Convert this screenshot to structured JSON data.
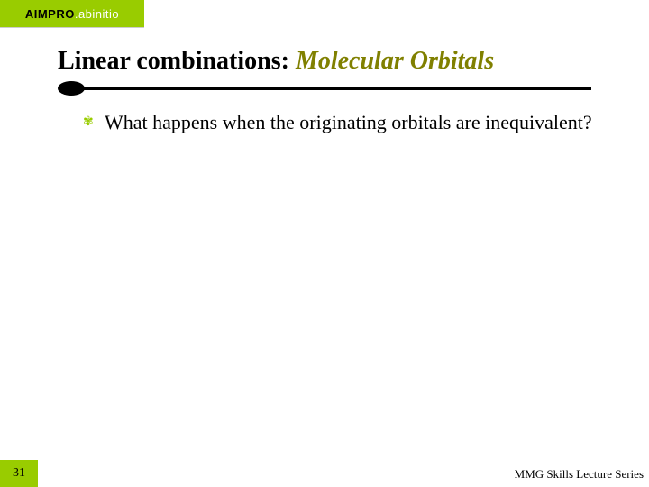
{
  "logo": {
    "part1": "AIMPRO",
    "part2": ".abinitio"
  },
  "heading": {
    "plain": "Linear combinations: ",
    "emph": "Molecular Orbitals"
  },
  "bullets": [
    {
      "text": "What happens when the originating orbitals are inequivalent?"
    }
  ],
  "page_number": "31",
  "footer": "MMG Skills Lecture Series",
  "colors": {
    "accent": "#99cc00",
    "olive": "#808000",
    "black": "#000000",
    "white": "#ffffff"
  },
  "bullet_glyph": "✾"
}
